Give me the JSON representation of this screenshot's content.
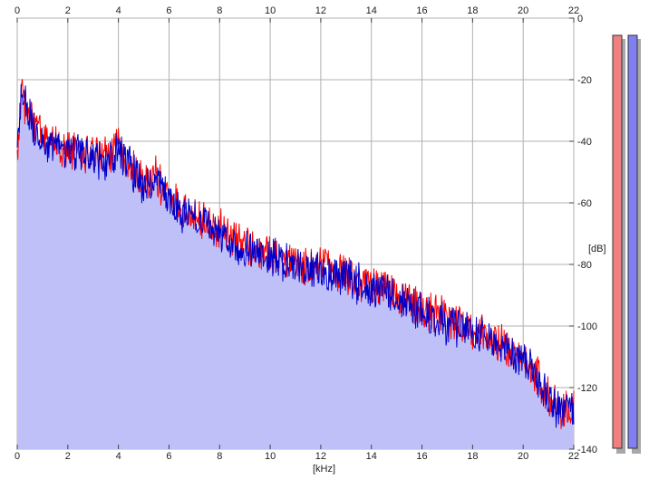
{
  "window": {
    "x_unit_label": "[kHz]",
    "y_unit_label": "[dB]"
  },
  "chart_data": {
    "type": "line",
    "xlabel": "[kHz]",
    "ylabel": "[dB]",
    "xlim": [
      0,
      22
    ],
    "ylim": [
      -140,
      0
    ],
    "x_ticks": [
      "0",
      "2",
      "4",
      "6",
      "8",
      "10",
      "12",
      "14",
      "16",
      "18",
      "20",
      "22"
    ],
    "y_ticks": [
      "0",
      "-20",
      "-40",
      "-60",
      "-80",
      "-100",
      "-120",
      "-140"
    ],
    "grid": true,
    "fill_color": "#c0c0f8",
    "series": [
      {
        "color": "#ff0000",
        "x": [
          0,
          0.1,
          0.2,
          0.3,
          0.5,
          0.7,
          1,
          1.5,
          2,
          2.5,
          3,
          3.5,
          4,
          4.5,
          5,
          5.5,
          6,
          6.5,
          7,
          7.5,
          8,
          8.5,
          9,
          9.5,
          10,
          10.5,
          11,
          11.5,
          12,
          12.5,
          13,
          13.5,
          14,
          14.5,
          15,
          15.5,
          16,
          16.5,
          17,
          17.5,
          18,
          18.5,
          19,
          19.5,
          20,
          20.5,
          21,
          21.5,
          22
        ],
        "y": [
          -45,
          -30,
          -24,
          -26,
          -30,
          -34,
          -37,
          -40,
          -41,
          -42,
          -43,
          -44,
          -41,
          -46,
          -52,
          -50,
          -57,
          -61,
          -63,
          -65,
          -67,
          -70,
          -72,
          -74,
          -75,
          -76,
          -78,
          -79,
          -79,
          -80,
          -82,
          -84,
          -86,
          -86,
          -89,
          -91,
          -93,
          -94,
          -97,
          -98,
          -99,
          -101,
          -104,
          -106,
          -109,
          -114,
          -121,
          -125,
          -126
        ]
      },
      {
        "color": "#0000cc",
        "x": [
          0,
          0.1,
          0.2,
          0.3,
          0.5,
          0.7,
          1,
          1.5,
          2,
          2.5,
          3,
          3.5,
          4,
          4.5,
          5,
          5.5,
          6,
          6.5,
          7,
          7.5,
          8,
          8.5,
          9,
          9.5,
          10,
          10.5,
          11,
          11.5,
          12,
          12.5,
          13,
          13.5,
          14,
          14.5,
          15,
          15.5,
          16,
          16.5,
          17,
          17.5,
          18,
          18.5,
          19,
          19.5,
          20,
          20.5,
          21,
          21.5,
          22
        ],
        "y": [
          -44,
          -29,
          -22,
          -25,
          -31,
          -35,
          -38,
          -41,
          -42,
          -43,
          -44,
          -45,
          -42,
          -47,
          -53,
          -51,
          -58,
          -62,
          -64,
          -66,
          -68,
          -71,
          -73,
          -75,
          -76,
          -77,
          -79,
          -80,
          -80,
          -81,
          -83,
          -85,
          -87,
          -87,
          -90,
          -92,
          -94,
          -95,
          -98,
          -99,
          -100,
          -102,
          -105,
          -107,
          -110,
          -115,
          -122,
          -126,
          -127
        ]
      }
    ]
  },
  "meters": {
    "left": {
      "color": "#f08080",
      "level_db": -6
    },
    "right": {
      "color": "#8080f0",
      "level_db": -6
    }
  }
}
